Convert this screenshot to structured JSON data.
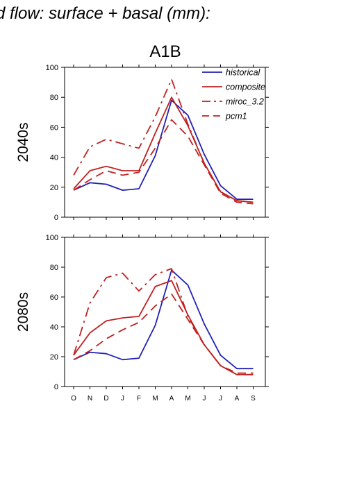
{
  "page": {
    "title": "d flow: surface + basal (mm):"
  },
  "colors": {
    "historical": "#2020b8",
    "projection": "#c02020",
    "axis": "#000000"
  },
  "chart_data": {
    "type": "line",
    "title": "A1B",
    "categories": [
      "O",
      "N",
      "D",
      "J",
      "F",
      "M",
      "A",
      "M",
      "J",
      "J",
      "A",
      "S"
    ],
    "ylim": [
      0,
      100
    ],
    "yticks": [
      0,
      20,
      40,
      60,
      80,
      100
    ],
    "grid": false,
    "legend_placement": "top-right",
    "legend": [
      {
        "name": "historical",
        "style": "solid",
        "color": "#2020b8"
      },
      {
        "name": "composite",
        "style": "solid",
        "color": "#c02020"
      },
      {
        "name": "miroc_3.2",
        "style": "dashdot",
        "color": "#c02020"
      },
      {
        "name": "pcm1",
        "style": "dashed",
        "color": "#c02020"
      }
    ],
    "panels": [
      {
        "label": "2040s",
        "series": [
          {
            "name": "historical",
            "values": [
              18,
              23,
              22,
              18,
              19,
              41,
              78,
              68,
              42,
              21,
              12,
              12
            ]
          },
          {
            "name": "composite",
            "values": [
              19,
              31,
              34,
              31,
              31,
              56,
              80,
              61,
              36,
              17,
              11,
              10
            ]
          },
          {
            "name": "miroc_3.2",
            "values": [
              28,
              47,
              52,
              49,
              46,
              67,
              92,
              62,
              36,
              17,
              11,
              10
            ]
          },
          {
            "name": "pcm1",
            "values": [
              18,
              25,
              31,
              28,
              30,
              46,
              65,
              54,
              35,
              16,
              10,
              9
            ]
          }
        ]
      },
      {
        "label": "2080s",
        "series": [
          {
            "name": "historical",
            "values": [
              18,
              23,
              22,
              18,
              19,
              41,
              78,
              68,
              42,
              21,
              12,
              12
            ]
          },
          {
            "name": "composite",
            "values": [
              21,
              36,
              44,
              46,
              47,
              67,
              71,
              48,
              28,
              14,
              8,
              8
            ]
          },
          {
            "name": "miroc_3.2",
            "values": [
              21,
              56,
              73,
              76,
              64,
              75,
              79,
              47,
              28,
              14,
              8,
              8
            ]
          },
          {
            "name": "pcm1",
            "values": [
              18,
              24,
              32,
              38,
              43,
              54,
              62,
              45,
              28,
              14,
              9,
              9
            ]
          }
        ]
      }
    ]
  }
}
